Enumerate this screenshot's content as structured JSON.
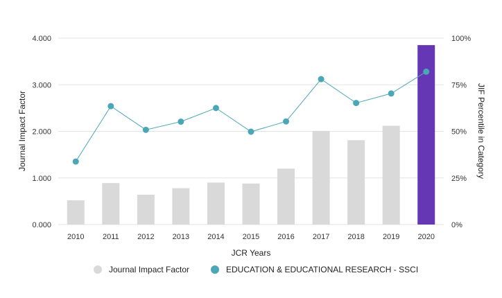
{
  "chart_data": {
    "type": "bar",
    "categories": [
      "2010",
      "2011",
      "2012",
      "2013",
      "2014",
      "2015",
      "2016",
      "2017",
      "2018",
      "2019",
      "2020"
    ],
    "series": [
      {
        "name": "Journal Impact Factor",
        "kind": "bar",
        "axis": "left",
        "values": [
          0.52,
          0.89,
          0.64,
          0.78,
          0.9,
          0.88,
          1.2,
          2.01,
          1.81,
          2.12,
          3.85
        ],
        "color": "#d9d9d9",
        "highlight": {
          "category": "2020",
          "color": "#6637b5"
        }
      },
      {
        "name": "EDUCATION & EDUCATIONAL RESEARCH - SSCI",
        "kind": "line",
        "axis": "right",
        "values": [
          33.8,
          63.5,
          50.8,
          55.2,
          62.5,
          49.8,
          55.3,
          78.0,
          65.2,
          70.3,
          82.0
        ],
        "color": "#4ba7b8"
      }
    ],
    "xlabel": "JCR Years",
    "ylabel": "Journal Impact Factor",
    "ylabel_right": "JIF Percentile in Category",
    "ylim": [
      0,
      4
    ],
    "ylim_right": [
      0,
      100
    ],
    "yticks": [
      "0.000",
      "1.000",
      "2.000",
      "3.000",
      "4.000"
    ],
    "yticks_right": [
      "0%",
      "25%",
      "50%",
      "75%",
      "100%"
    ],
    "grid": true,
    "legend_position": "bottom"
  }
}
